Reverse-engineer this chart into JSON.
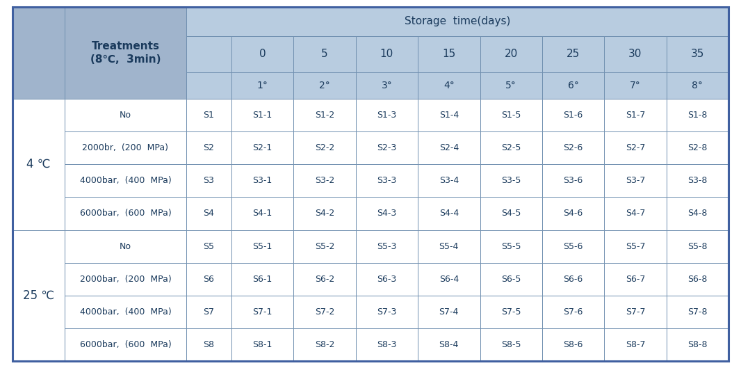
{
  "header_bg": "#a0b4cc",
  "header_bg_light": "#b8cce0",
  "cell_bg_white": "#ffffff",
  "cell_text_color": "#1a3a5c",
  "border_color": "#7090b0",
  "outer_border_color": "#4060a0",
  "storage_time_header": "Storage  time(days)",
  "treatments_header": "Treatments\n(8℃,  3min)",
  "day_values": [
    "0",
    "5",
    "10",
    "15",
    "20",
    "25",
    "30",
    "35"
  ],
  "degree_values": [
    "1°",
    "2°",
    "3°",
    "4°",
    "5°",
    "6°",
    "7°",
    "8°"
  ],
  "temp_labels": [
    "4 ℃",
    "25 ℃"
  ],
  "temp_row_spans": [
    4,
    4
  ],
  "treatment_labels": [
    "No",
    "2000br,  (200  MPa)",
    "4000bar,  (400  MPa)",
    "6000bar,  (600  MPa)",
    "No",
    "2000bar,  (200  MPa)",
    "4000bar,  (400  MPa)",
    "6000bar,  (600  MPa)"
  ],
  "sample_ids": [
    "S1",
    "S2",
    "S3",
    "S4",
    "S5",
    "S6",
    "S7",
    "S8"
  ],
  "data_rows": [
    [
      "S1-1",
      "S1-2",
      "S1-3",
      "S1-4",
      "S1-5",
      "S1-6",
      "S1-7",
      "S1-8"
    ],
    [
      "S2-1",
      "S2-2",
      "S2-3",
      "S2-4",
      "S2-5",
      "S2-6",
      "S2-7",
      "S2-8"
    ],
    [
      "S3-1",
      "S3-2",
      "S3-3",
      "S3-4",
      "S3-5",
      "S3-6",
      "S3-7",
      "S3-8"
    ],
    [
      "S4-1",
      "S4-2",
      "S4-3",
      "S4-4",
      "S4-5",
      "S4-6",
      "S4-7",
      "S4-8"
    ],
    [
      "S5-1",
      "S5-2",
      "S5-3",
      "S5-4",
      "S5-5",
      "S5-6",
      "S5-7",
      "S5-8"
    ],
    [
      "S6-1",
      "S6-2",
      "S6-3",
      "S6-4",
      "S6-5",
      "S6-6",
      "S6-7",
      "S6-8"
    ],
    [
      "S7-1",
      "S7-2",
      "S7-3",
      "S7-4",
      "S7-5",
      "S7-6",
      "S7-7",
      "S7-8"
    ],
    [
      "S8-1",
      "S8-2",
      "S8-3",
      "S8-4",
      "S8-5",
      "S8-6",
      "S8-7",
      "S8-8"
    ]
  ],
  "figsize": [
    10.66,
    5.29
  ],
  "dpi": 100
}
